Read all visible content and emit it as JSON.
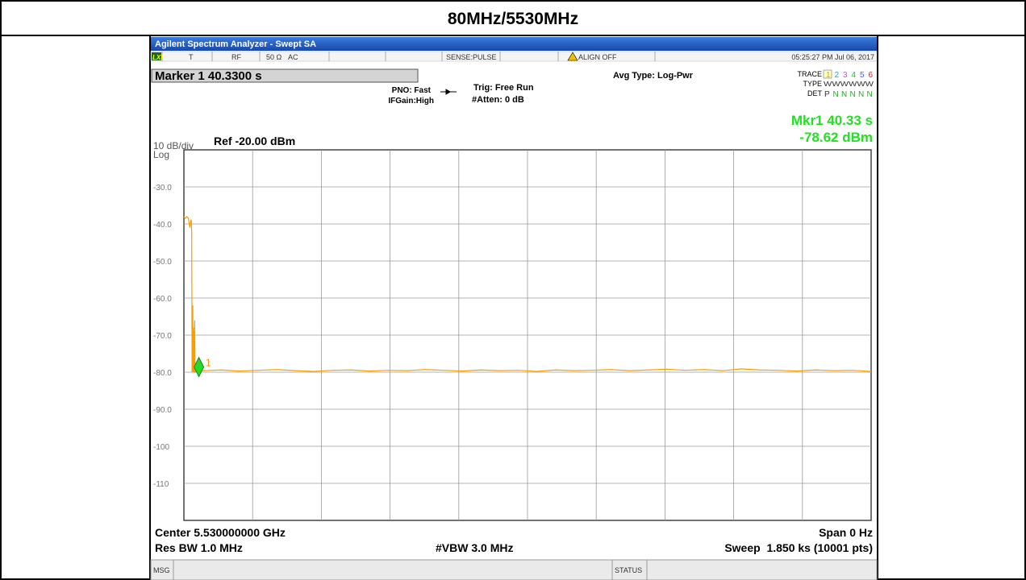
{
  "header": {
    "title": "80MHz/5530MHz"
  },
  "analyzer": {
    "window_title": "Agilent Spectrum Analyzer - Swept SA",
    "status_row": {
      "lxi": "LXI",
      "trigger_flag": "T",
      "input": "RF",
      "impedance": "50 Ω",
      "coupling": "AC",
      "sense": "SENSE:PULSE",
      "align": "ALIGN OFF",
      "timestamp": "05:25:27 PM Jul 06, 2017"
    },
    "marker_box": "Marker 1 40.3300 s",
    "settings": {
      "pno": "PNO: Fast",
      "ifgain": "IFGain:High",
      "trig": "Trig: Free Run",
      "atten": "#Atten: 0 dB",
      "avg_type": "Avg Type: Log-Pwr"
    },
    "trace_panel": {
      "trace_label": "TRACE",
      "type_label": "TYPE",
      "det_label": "DET",
      "trace_numbers": [
        "1",
        "2",
        "3",
        "4",
        "5",
        "6"
      ],
      "trace_colors": [
        "#e0a000",
        "#00b0d0",
        "#e040e0",
        "#30c030",
        "#4060ff",
        "#e02020"
      ],
      "types": "WWWWWW",
      "detectors": [
        "P",
        "N",
        "N",
        "N",
        "N",
        "N"
      ]
    },
    "scale": {
      "per_div": "10 dB/div",
      "mode": "Log",
      "ref": "Ref -20.00 dBm"
    },
    "footer": {
      "center": "Center 5.530000000 GHz",
      "span": "Span 0 Hz",
      "rbw": "Res BW 1.0 MHz",
      "vbw": "#VBW 3.0 MHz",
      "sweep": "Sweep  1.850 ks (10001 pts)"
    },
    "status_bar": {
      "msg": "MSG",
      "status": "STATUS"
    }
  },
  "chart_data": {
    "type": "line",
    "xlim": [
      0,
      1850
    ],
    "ylim": [
      -120,
      -20
    ],
    "yticks": [
      {
        "value": -30,
        "label": "-30.0"
      },
      {
        "value": -40,
        "label": "-40.0"
      },
      {
        "value": -50,
        "label": "-50.0"
      },
      {
        "value": -60,
        "label": "-60.0"
      },
      {
        "value": -70,
        "label": "-70.0"
      },
      {
        "value": -80,
        "label": "-80.0"
      },
      {
        "value": -90,
        "label": "-90.0"
      },
      -100,
      -110
    ],
    "grid": true,
    "x": [
      0,
      4,
      8,
      12,
      16,
      19,
      20,
      21,
      22,
      23,
      24,
      25,
      26,
      27,
      28,
      29,
      30,
      32,
      34,
      36,
      38,
      40.33,
      50,
      100,
      150,
      200,
      250,
      300,
      350,
      400,
      450,
      500,
      550,
      600,
      650,
      700,
      750,
      800,
      850,
      900,
      950,
      1000,
      1050,
      1100,
      1150,
      1200,
      1250,
      1300,
      1350,
      1400,
      1450,
      1500,
      1550,
      1600,
      1650,
      1700,
      1750,
      1800,
      1850
    ],
    "series": [
      {
        "name": "Trace 1",
        "color": "#f5a000",
        "values": [
          -38,
          -38.5,
          -38,
          -38.5,
          -41,
          -39,
          -39,
          -42,
          -80,
          -79.6,
          -62,
          -80,
          -68,
          -80,
          -79.5,
          -66,
          -80,
          -79.7,
          -79.4,
          -79.8,
          -79.5,
          -78.62,
          -79.6,
          -79.4,
          -79.7,
          -79.5,
          -79.3,
          -79.6,
          -79.8,
          -79.5,
          -79.4,
          -79.7,
          -79.5,
          -79.6,
          -79.3,
          -79.5,
          -79.7,
          -79.4,
          -79.6,
          -79.5,
          -79.8,
          -79.4,
          -79.6,
          -79.5,
          -79.3,
          -79.6,
          -79.4,
          -79.2,
          -79.5,
          -79.3,
          -79.6,
          -79.1,
          -79.4,
          -79.5,
          -79.7,
          -79.4,
          -79.6,
          -79.5,
          -79.8
        ]
      }
    ],
    "marker": {
      "label": "1",
      "x": 40.33,
      "y": -78.62,
      "readout_x": "Mkr1 40.33 s",
      "readout_y": "-78.62 dBm"
    }
  }
}
